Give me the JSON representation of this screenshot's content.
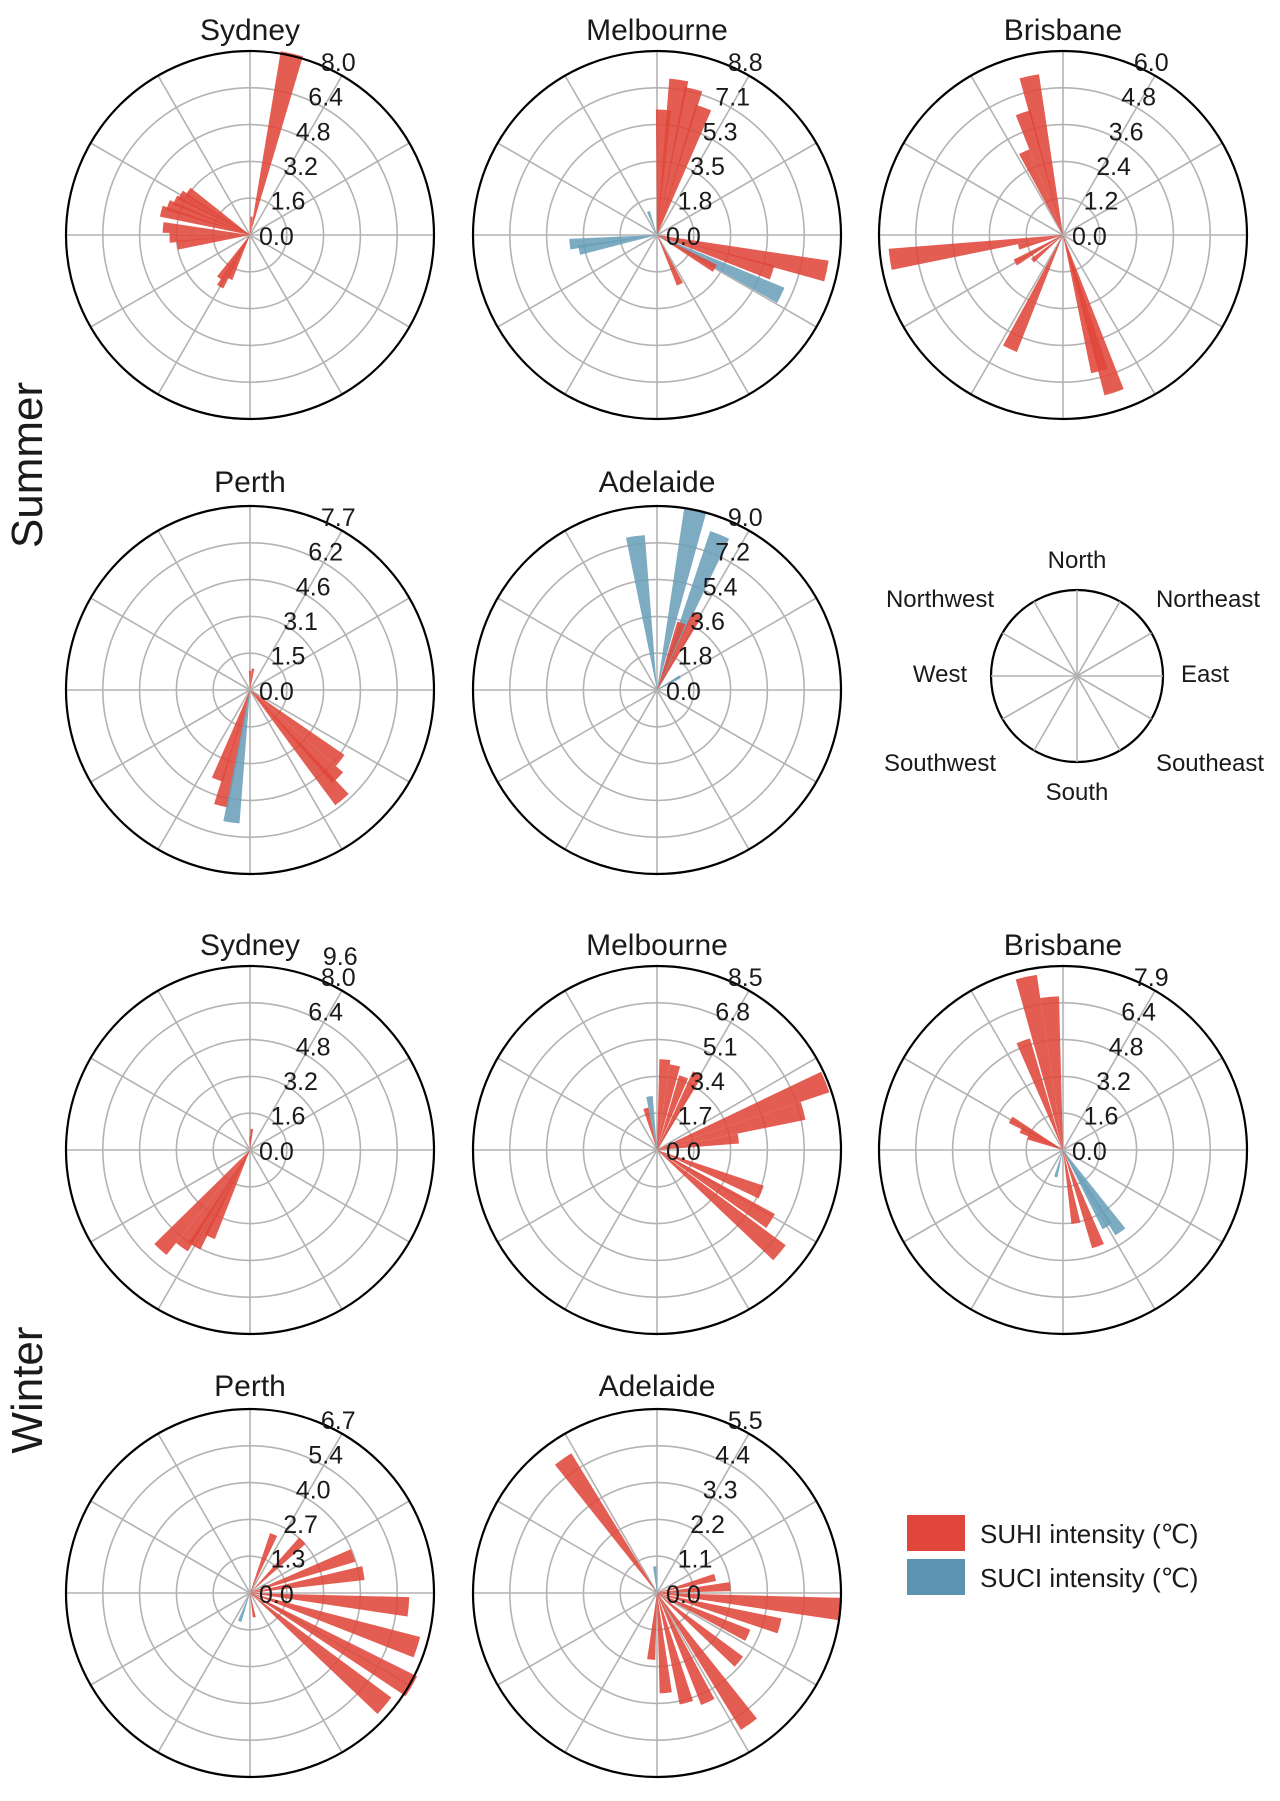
{
  "colors": {
    "suhi": "#e0473a",
    "suci": "#6a9fb9"
  },
  "seasons": [
    "Summer",
    "Winter"
  ],
  "direction_key": {
    "labels": [
      "North",
      "Northeast",
      "East",
      "Southeast",
      "South",
      "Southwest",
      "West",
      "Northwest"
    ]
  },
  "legend": [
    {
      "label": "SUHI intensity (℃)",
      "color": "#e0473a"
    },
    {
      "label": "SUCI intensity (℃)",
      "color": "#5b93b0"
    }
  ],
  "chart_data": [
    {
      "type": "polar-bar",
      "season": "Summer",
      "title": "Sydney",
      "ticks": [
        "0.0",
        "1.6",
        "3.2",
        "4.8",
        "6.4",
        "8.0"
      ],
      "rmax": 8.0,
      "bars": [
        {
          "dir": 13,
          "value": 8.1,
          "kind": "SUHI"
        },
        {
          "dir": 5,
          "value": 0.8,
          "kind": "SUHI"
        },
        {
          "dir": 285,
          "value": 4.0,
          "kind": "SUHI"
        },
        {
          "dir": 290,
          "value": 3.8,
          "kind": "SUHI"
        },
        {
          "dir": 295,
          "value": 3.6,
          "kind": "SUHI"
        },
        {
          "dir": 300,
          "value": 3.5,
          "kind": "SUHI"
        },
        {
          "dir": 305,
          "value": 3.3,
          "kind": "SUHI"
        },
        {
          "dir": 275,
          "value": 3.8,
          "kind": "SUHI"
        },
        {
          "dir": 268,
          "value": 3.5,
          "kind": "SUHI"
        },
        {
          "dir": 262,
          "value": 3.2,
          "kind": "SUHI"
        },
        {
          "dir": 210,
          "value": 2.6,
          "kind": "SUHI"
        },
        {
          "dir": 215,
          "value": 2.3,
          "kind": "SUHI"
        },
        {
          "dir": 205,
          "value": 2.1,
          "kind": "SUHI"
        }
      ]
    },
    {
      "type": "polar-bar",
      "season": "Summer",
      "title": "Melbourne",
      "ticks": [
        "0.0",
        "1.8",
        "3.5",
        "5.3",
        "7.1",
        "8.8"
      ],
      "rmax": 8.8,
      "bars": [
        {
          "dir": 8,
          "value": 7.5,
          "kind": "SUHI"
        },
        {
          "dir": 14,
          "value": 7.2,
          "kind": "SUHI"
        },
        {
          "dir": 20,
          "value": 6.5,
          "kind": "SUHI"
        },
        {
          "dir": 3,
          "value": 6.0,
          "kind": "SUHI"
        },
        {
          "dir": 340,
          "value": 1.2,
          "kind": "SUCI"
        },
        {
          "dir": 264,
          "value": 4.2,
          "kind": "SUCI"
        },
        {
          "dir": 259,
          "value": 3.8,
          "kind": "SUCI"
        },
        {
          "dir": 102,
          "value": 8.3,
          "kind": "SUHI"
        },
        {
          "dir": 108,
          "value": 5.8,
          "kind": "SUHI"
        },
        {
          "dir": 116,
          "value": 6.6,
          "kind": "SUCI"
        },
        {
          "dir": 120,
          "value": 3.2,
          "kind": "SUHI"
        },
        {
          "dir": 155,
          "value": 2.6,
          "kind": "SUHI"
        }
      ]
    },
    {
      "type": "polar-bar",
      "season": "Summer",
      "title": "Brisbane",
      "ticks": [
        "0.0",
        "1.2",
        "2.4",
        "3.6",
        "4.8",
        "6.0"
      ],
      "rmax": 6.0,
      "bars": [
        {
          "dir": 348,
          "value": 5.3,
          "kind": "SUHI"
        },
        {
          "dir": 342,
          "value": 4.2,
          "kind": "SUHI"
        },
        {
          "dir": 335,
          "value": 3.0,
          "kind": "SUHI"
        },
        {
          "dir": 262,
          "value": 5.7,
          "kind": "SUHI"
        },
        {
          "dir": 255,
          "value": 1.5,
          "kind": "SUHI"
        },
        {
          "dir": 240,
          "value": 1.8,
          "kind": "SUHI"
        },
        {
          "dir": 230,
          "value": 1.3,
          "kind": "SUHI"
        },
        {
          "dir": 205,
          "value": 4.1,
          "kind": "SUHI"
        },
        {
          "dir": 162,
          "value": 5.4,
          "kind": "SUHI"
        },
        {
          "dir": 165,
          "value": 4.6,
          "kind": "SUHI"
        }
      ]
    },
    {
      "type": "polar-bar",
      "season": "Summer",
      "title": "Perth",
      "ticks": [
        "0.0",
        "1.5",
        "3.1",
        "4.6",
        "6.2",
        "7.7"
      ],
      "rmax": 7.7,
      "bars": [
        {
          "dir": 0,
          "value": 0.8,
          "kind": "SUHI"
        },
        {
          "dir": 8,
          "value": 0.9,
          "kind": "SUHI"
        },
        {
          "dir": 140,
          "value": 6.0,
          "kind": "SUHI"
        },
        {
          "dir": 135,
          "value": 5.2,
          "kind": "SUHI"
        },
        {
          "dir": 128,
          "value": 4.8,
          "kind": "SUHI"
        },
        {
          "dir": 194,
          "value": 5.0,
          "kind": "SUHI"
        },
        {
          "dir": 188,
          "value": 5.6,
          "kind": "SUCI"
        },
        {
          "dir": 200,
          "value": 4.0,
          "kind": "SUHI"
        }
      ]
    },
    {
      "type": "polar-bar",
      "season": "Summer",
      "title": "Adelaide",
      "ticks": [
        "0.0",
        "1.8",
        "3.6",
        "5.4",
        "7.2",
        "9.0"
      ],
      "rmax": 9.0,
      "bars": [
        {
          "dir": 352,
          "value": 7.6,
          "kind": "SUCI"
        },
        {
          "dir": 12,
          "value": 9.0,
          "kind": "SUCI"
        },
        {
          "dir": 22,
          "value": 8.2,
          "kind": "SUCI"
        },
        {
          "dir": 28,
          "value": 4.2,
          "kind": "SUHI"
        },
        {
          "dir": 20,
          "value": 3.5,
          "kind": "SUHI"
        },
        {
          "dir": 60,
          "value": 1.3,
          "kind": "SUCI"
        }
      ]
    },
    {
      "type": "polar-bar",
      "season": "Winter",
      "title": "Sydney",
      "ticks": [
        "0.0",
        "1.6",
        "3.2",
        "4.8",
        "6.4",
        "8.0",
        "9.6"
      ],
      "rmax": 9.6,
      "bars": [
        {
          "dir": 5,
          "value": 1.1,
          "kind": "SUHI"
        },
        {
          "dir": 0,
          "value": 0.7,
          "kind": "SUHI"
        },
        {
          "dir": 222,
          "value": 7.0,
          "kind": "SUHI"
        },
        {
          "dir": 215,
          "value": 6.2,
          "kind": "SUHI"
        },
        {
          "dir": 210,
          "value": 5.8,
          "kind": "SUHI"
        },
        {
          "dir": 205,
          "value": 5.0,
          "kind": "SUHI"
        }
      ]
    },
    {
      "type": "polar-bar",
      "season": "Winter",
      "title": "Melbourne",
      "ticks": [
        "0.0",
        "1.7",
        "3.4",
        "5.1",
        "6.8",
        "8.5"
      ],
      "rmax": 8.5,
      "bars": [
        {
          "dir": 5,
          "value": 4.2,
          "kind": "SUHI"
        },
        {
          "dir": 12,
          "value": 4.0,
          "kind": "SUHI"
        },
        {
          "dir": 20,
          "value": 3.6,
          "kind": "SUHI"
        },
        {
          "dir": 28,
          "value": 4.0,
          "kind": "SUHI"
        },
        {
          "dir": 352,
          "value": 2.5,
          "kind": "SUCI"
        },
        {
          "dir": 345,
          "value": 2.0,
          "kind": "SUHI"
        },
        {
          "dir": 68,
          "value": 8.4,
          "kind": "SUHI"
        },
        {
          "dir": 75,
          "value": 7.0,
          "kind": "SUHI"
        },
        {
          "dir": 82,
          "value": 3.8,
          "kind": "SUHI"
        },
        {
          "dir": 112,
          "value": 5.2,
          "kind": "SUHI"
        },
        {
          "dir": 122,
          "value": 6.2,
          "kind": "SUHI"
        },
        {
          "dir": 130,
          "value": 7.4,
          "kind": "SUHI"
        }
      ]
    },
    {
      "type": "polar-bar",
      "season": "Winter",
      "title": "Brisbane",
      "ticks": [
        "0.0",
        "1.6",
        "3.2",
        "4.8",
        "6.4",
        "7.9"
      ],
      "rmax": 7.9,
      "bars": [
        {
          "dir": 348,
          "value": 7.6,
          "kind": "SUHI"
        },
        {
          "dir": 355,
          "value": 6.6,
          "kind": "SUHI"
        },
        {
          "dir": 340,
          "value": 5.0,
          "kind": "SUHI"
        },
        {
          "dir": 300,
          "value": 2.6,
          "kind": "SUHI"
        },
        {
          "dir": 295,
          "value": 2.0,
          "kind": "SUHI"
        },
        {
          "dir": 290,
          "value": 1.6,
          "kind": "SUHI"
        },
        {
          "dir": 145,
          "value": 4.3,
          "kind": "SUCI"
        },
        {
          "dir": 150,
          "value": 3.8,
          "kind": "SUCI"
        },
        {
          "dir": 160,
          "value": 4.4,
          "kind": "SUHI"
        },
        {
          "dir": 170,
          "value": 3.2,
          "kind": "SUHI"
        },
        {
          "dir": 195,
          "value": 1.2,
          "kind": "SUCI"
        }
      ]
    },
    {
      "type": "polar-bar",
      "season": "Winter",
      "title": "Perth",
      "ticks": [
        "0.0",
        "1.3",
        "2.7",
        "4.0",
        "5.4",
        "6.7"
      ],
      "rmax": 6.7,
      "bars": [
        {
          "dir": 22,
          "value": 2.3,
          "kind": "SUHI"
        },
        {
          "dir": 45,
          "value": 2.7,
          "kind": "SUHI"
        },
        {
          "dir": 70,
          "value": 4.0,
          "kind": "SUHI"
        },
        {
          "dir": 80,
          "value": 4.2,
          "kind": "SUHI"
        },
        {
          "dir": 95,
          "value": 5.8,
          "kind": "SUHI"
        },
        {
          "dir": 108,
          "value": 6.4,
          "kind": "SUHI"
        },
        {
          "dir": 120,
          "value": 6.8,
          "kind": "SUHI"
        },
        {
          "dir": 130,
          "value": 6.4,
          "kind": "SUHI"
        },
        {
          "dir": 200,
          "value": 1.1,
          "kind": "SUCI"
        },
        {
          "dir": 170,
          "value": 0.9,
          "kind": "SUHI"
        }
      ]
    },
    {
      "type": "polar-bar",
      "season": "Winter",
      "title": "Adelaide",
      "ticks": [
        "0.0",
        "1.1",
        "2.2",
        "3.3",
        "4.4",
        "5.5"
      ],
      "rmax": 5.5,
      "bars": [
        {
          "dir": 325,
          "value": 4.9,
          "kind": "SUHI"
        },
        {
          "dir": 355,
          "value": 0.8,
          "kind": "SUCI"
        },
        {
          "dir": 75,
          "value": 1.8,
          "kind": "SUHI"
        },
        {
          "dir": 85,
          "value": 2.2,
          "kind": "SUHI"
        },
        {
          "dir": 95,
          "value": 5.5,
          "kind": "SUHI"
        },
        {
          "dir": 105,
          "value": 3.8,
          "kind": "SUHI"
        },
        {
          "dir": 115,
          "value": 3.0,
          "kind": "SUHI"
        },
        {
          "dir": 130,
          "value": 3.2,
          "kind": "SUHI"
        },
        {
          "dir": 145,
          "value": 4.8,
          "kind": "SUHI"
        },
        {
          "dir": 155,
          "value": 3.6,
          "kind": "SUHI"
        },
        {
          "dir": 165,
          "value": 3.4,
          "kind": "SUHI"
        },
        {
          "dir": 175,
          "value": 3.0,
          "kind": "SUHI"
        },
        {
          "dir": 185,
          "value": 2.0,
          "kind": "SUHI"
        }
      ]
    }
  ]
}
